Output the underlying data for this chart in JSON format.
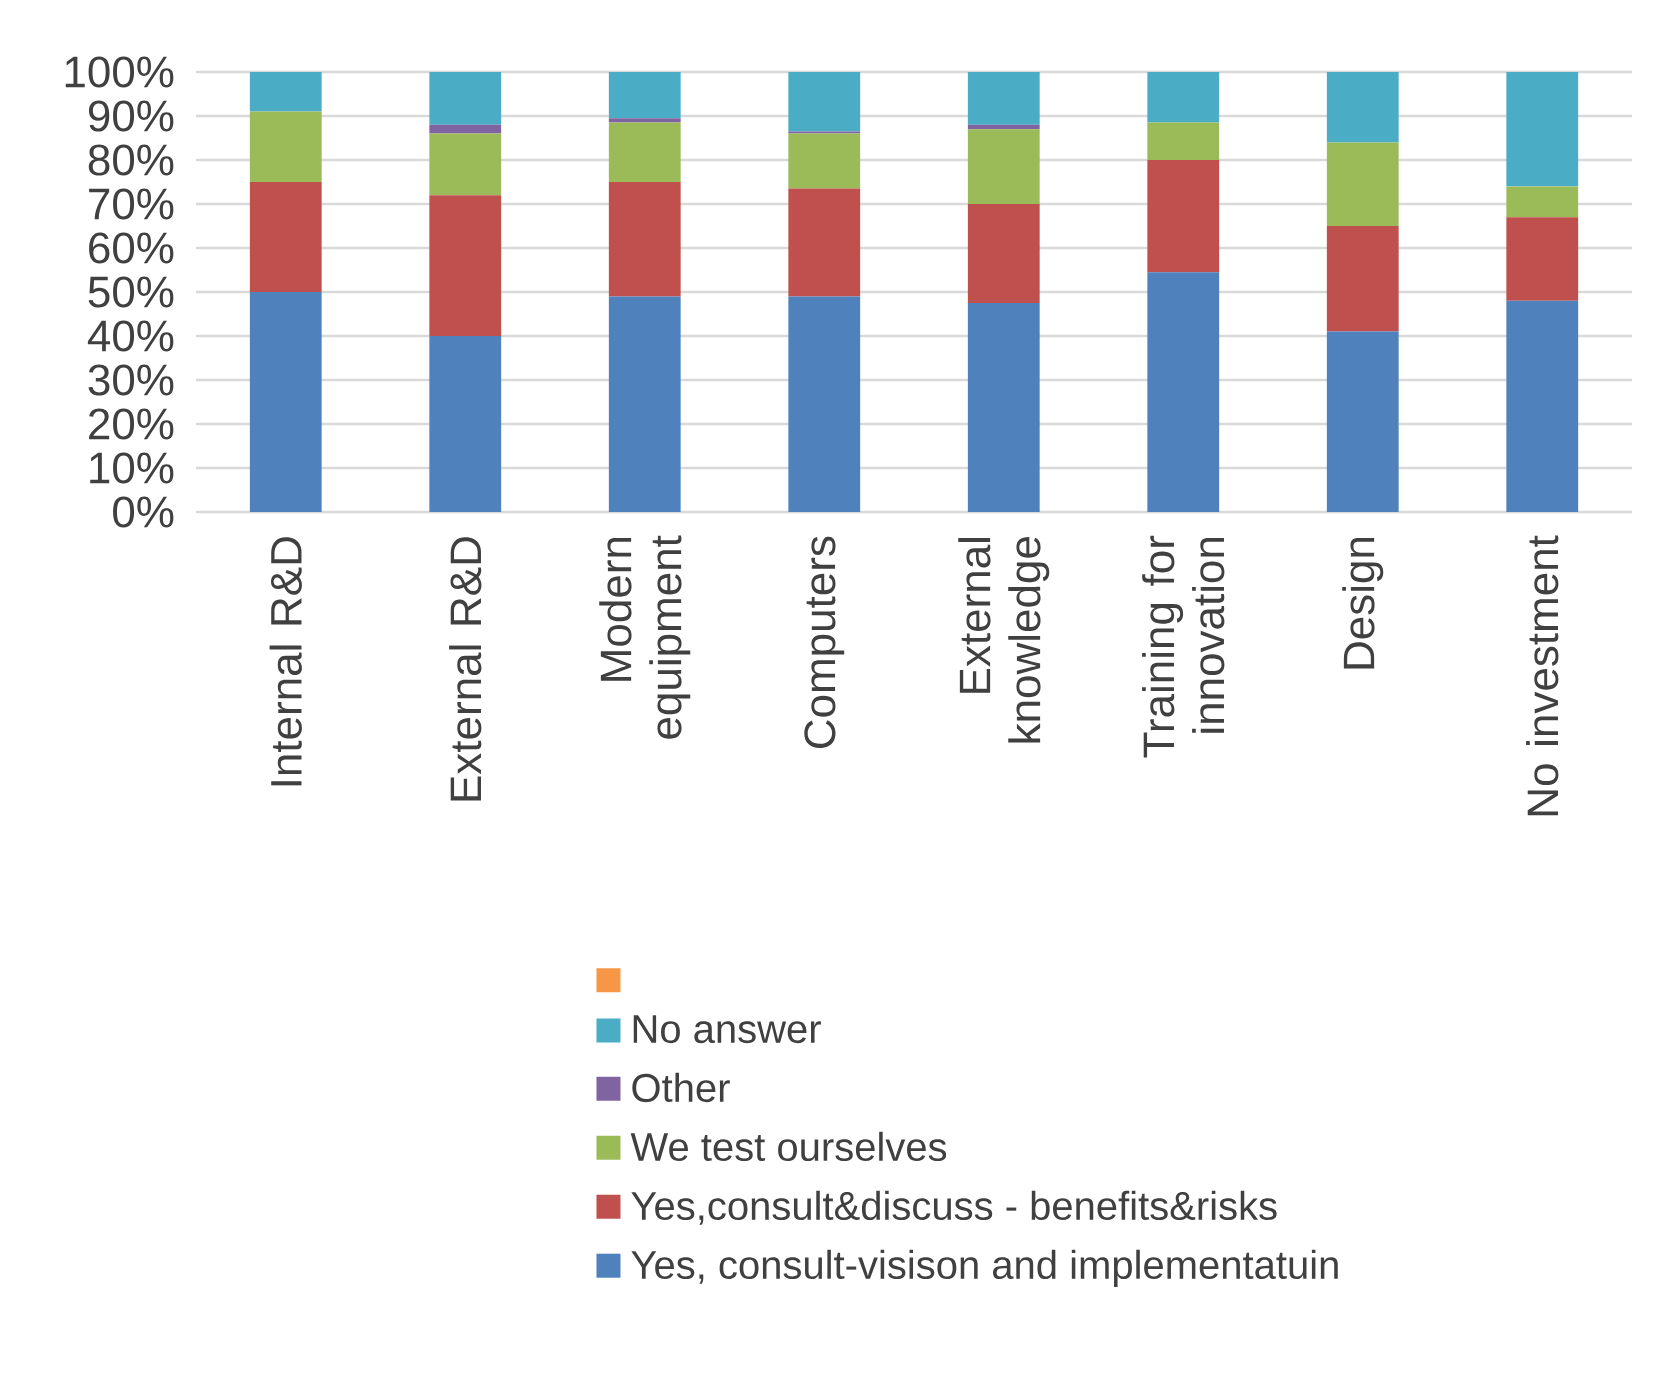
{
  "chart_data": {
    "type": "bar",
    "stacked": true,
    "categories": [
      "Internal R&D",
      "External R&D",
      "Modern equipment",
      "Computers",
      "External knowledge",
      "Training for innovation",
      "Design",
      "No investment"
    ],
    "series": [
      {
        "name": "Yes, consult-visison and implementatuin",
        "color": "#4f81bd",
        "values": [
          50,
          40,
          49,
          49,
          47.5,
          54.5,
          41,
          48
        ]
      },
      {
        "name": "Yes,consult&discuss - benefits&risks",
        "color": "#c0504d",
        "values": [
          25,
          32,
          26,
          24.5,
          22.5,
          25.5,
          24,
          19
        ]
      },
      {
        "name": "We test ourselves",
        "color": "#9bbb59",
        "values": [
          16,
          14,
          13.5,
          12.5,
          17,
          8.5,
          19,
          7
        ]
      },
      {
        "name": "Other",
        "color": "#8064a2",
        "values": [
          0,
          2,
          1,
          0.5,
          1,
          0,
          0,
          0
        ]
      },
      {
        "name": "No answer",
        "color": "#4bacc6",
        "values": [
          9,
          12,
          10.5,
          13.5,
          12,
          11.5,
          16,
          26
        ]
      },
      {
        "color": "#f79646",
        "values": [
          null,
          null,
          null,
          null,
          null,
          null,
          null,
          null
        ]
      }
    ],
    "ylim": [
      0,
      100
    ],
    "yticks": [
      {
        "value": 0,
        "label": "0%"
      },
      {
        "value": 10,
        "label": "10%"
      },
      {
        "value": 20,
        "label": "20%"
      },
      {
        "value": 30,
        "label": "30%"
      },
      {
        "value": 40,
        "label": "40%"
      },
      {
        "value": 50,
        "label": "50%"
      },
      {
        "value": 60,
        "label": "60%"
      },
      {
        "value": 70,
        "label": "70%"
      },
      {
        "value": 80,
        "label": "80%"
      },
      {
        "value": 90,
        "label": "90%"
      },
      {
        "value": 100,
        "label": "100%"
      }
    ],
    "grid": "y",
    "legend": "bottom"
  }
}
